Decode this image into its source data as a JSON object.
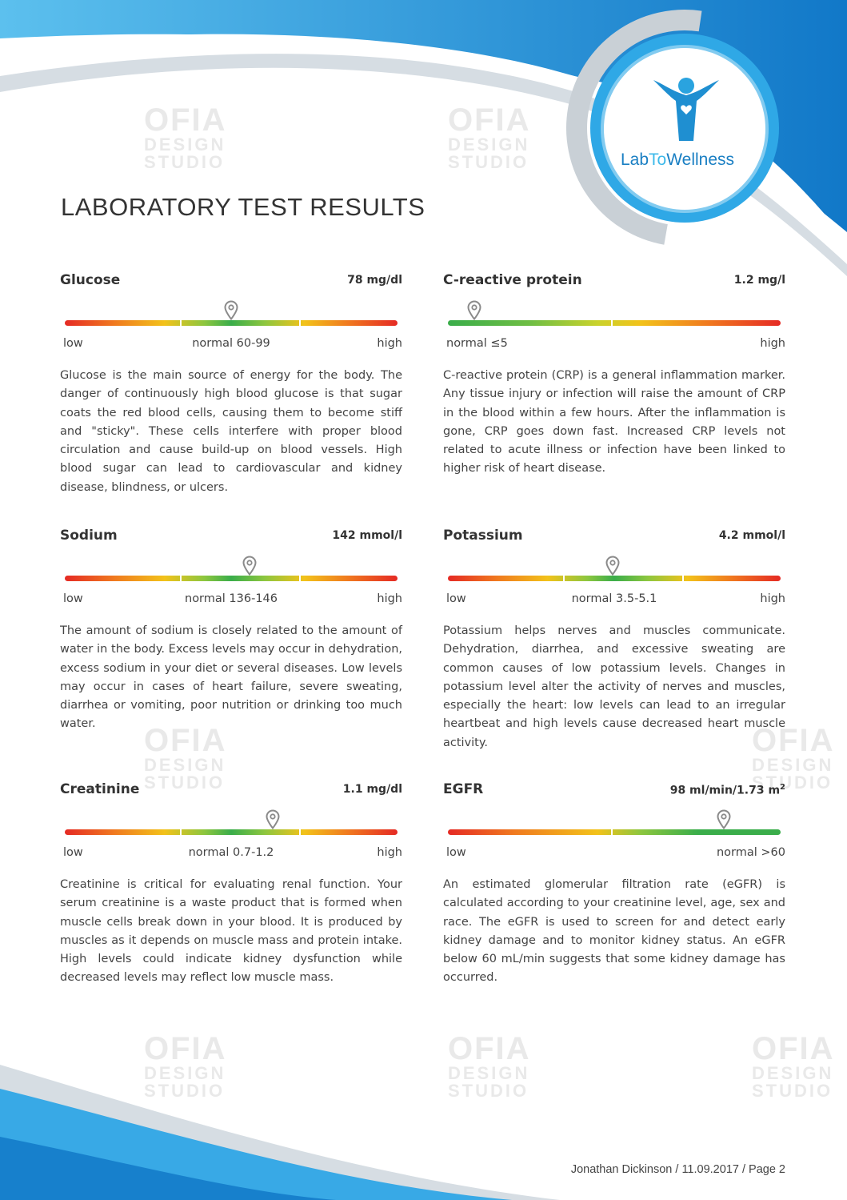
{
  "brand": {
    "logo_part1": "Lab",
    "logo_part2": "To",
    "logo_part3": "Wellness"
  },
  "watermark": {
    "line1": "OFIA",
    "line2": "DESIGN",
    "line3": "STUDIO"
  },
  "title": "LABORATORY TEST RESULTS",
  "tests": [
    {
      "name": "Glucose",
      "value": "78 mg/dl",
      "marker_fraction": 0.5,
      "labels": {
        "left": "low",
        "center": "normal 60-99",
        "right": "high"
      },
      "description": "Glucose is the main source of energy for the body. The danger of continuously high blood glucose is that sugar coats the red blood cells, causing them to become stiff and \"sticky\". These cells interfere with proper blood circulation and cause build-up on blood vessels. High blood sugar can lead to cardiovascular and kidney disease, blindness, or ulcers."
    },
    {
      "name": "C-reactive protein",
      "value": "1.2 mg/l",
      "marker_fraction": 0.08,
      "labels": {
        "left": "normal ≤5",
        "center": "",
        "right": "high"
      },
      "description": "C-reactive protein (CRP) is a general inflammation marker. Any tissue injury or infection will raise the amount of CRP in the blood within a few hours. After the inflammation is gone, CRP goes down fast. Increased CRP levels not related to acute illness or infection have been linked to higher risk of heart disease."
    },
    {
      "name": "Sodium",
      "value": "142 mmol/l",
      "marker_fraction": 0.555,
      "labels": {
        "left": "low",
        "center": "normal 136-146",
        "right": "high"
      },
      "description": "The amount of sodium is closely related to the amount of water in the body. Excess levels may occur in dehydration, excess sodium in your diet or several diseases. Low levels may occur in cases of heart failure, severe sweating, diarrhea or vomiting, poor nutrition or drinking too much water."
    },
    {
      "name": "Potassium",
      "value": "4.2 mmol/l",
      "marker_fraction": 0.495,
      "labels": {
        "left": "low",
        "center": "normal 3.5-5.1",
        "right": "high"
      },
      "description": "Potassium helps nerves and muscles communicate. Dehydration, diarrhea, and excessive sweating are common causes of low potassium levels. Changes in potassium level alter the activity of nerves and muscles, especially the heart: low levels can lead to an irregular heartbeat and high levels cause decreased heart muscle activity."
    },
    {
      "name": "Creatinine",
      "value": "1.1 mg/dl",
      "marker_fraction": 0.625,
      "labels": {
        "left": "low",
        "center": "normal 0.7-1.2",
        "right": "high"
      },
      "description": "Creatinine is critical for evaluating renal function. Your serum creatinine is a waste product that is formed when muscle cells break down in your blood. It is produced by muscles as it depends on muscle mass and protein intake. High levels could indicate kidney dysfunction while decreased levels may reflect low muscle mass."
    },
    {
      "name": "EGFR",
      "value": "98 ml/min/1.73 m",
      "value_sup": "2",
      "marker_fraction": 0.83,
      "labels": {
        "left": "low",
        "center": "",
        "right": "normal >60"
      },
      "description": "An estimated glomerular filtration rate (eGFR) is calculated according to your creatinine level, age, sex and race. The eGFR is used to screen for and detect early kidney damage and to monitor kidney status. An eGFR below 60 mL/min suggests that some kidney damage has occurred."
    }
  ],
  "footer": "Jonathan Dickinson / 11.09.2017 / Page 2"
}
